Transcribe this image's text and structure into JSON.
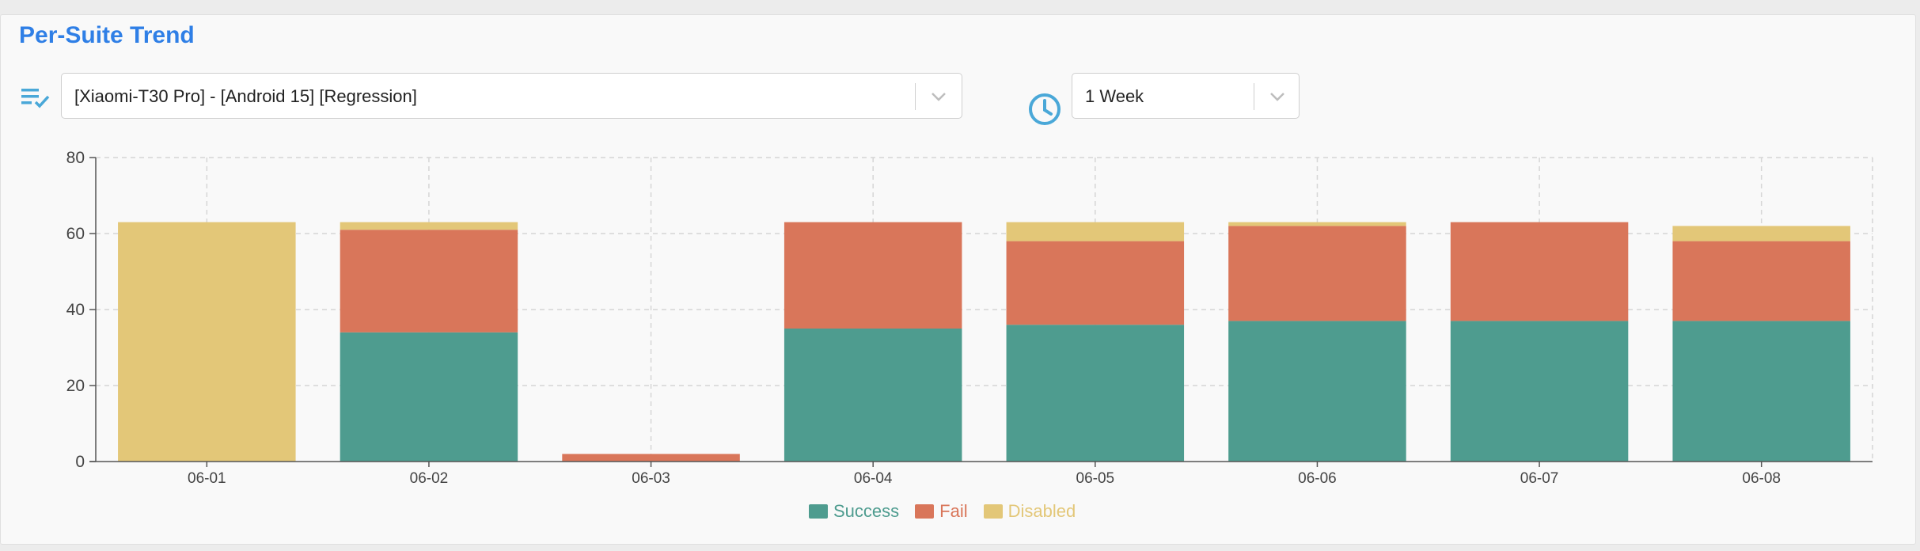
{
  "header": {
    "title": "Per-Suite Trend"
  },
  "filters": {
    "suite": {
      "value": "[Xiaomi-T30 Pro] - [Android 15] [Regression]",
      "icon": "playlist-check-icon"
    },
    "range": {
      "value": "1 Week",
      "icon": "clock-icon"
    }
  },
  "colors": {
    "accent": "#2f7fe6",
    "icon": "#4aa8d8",
    "success": "#4e9c8f",
    "fail": "#d9765a",
    "disabled": "#e3c778"
  },
  "chart_data": {
    "type": "bar",
    "stacked": true,
    "categories": [
      "06-01",
      "06-02",
      "06-03",
      "06-04",
      "06-05",
      "06-06",
      "06-07",
      "06-08"
    ],
    "series": [
      {
        "name": "Success",
        "color": "#4e9c8f",
        "values": [
          0,
          34,
          0,
          35,
          36,
          37,
          37,
          37
        ]
      },
      {
        "name": "Fail",
        "color": "#d9765a",
        "values": [
          0,
          27,
          2,
          28,
          22,
          25,
          26,
          21
        ]
      },
      {
        "name": "Disabled",
        "color": "#e3c778",
        "values": [
          63,
          2,
          0,
          0,
          5,
          1,
          0,
          4
        ]
      }
    ],
    "ylim": [
      0,
      80
    ],
    "yticks": [
      0,
      20,
      40,
      60,
      80
    ],
    "grid": true,
    "legend": "bottom-center"
  }
}
